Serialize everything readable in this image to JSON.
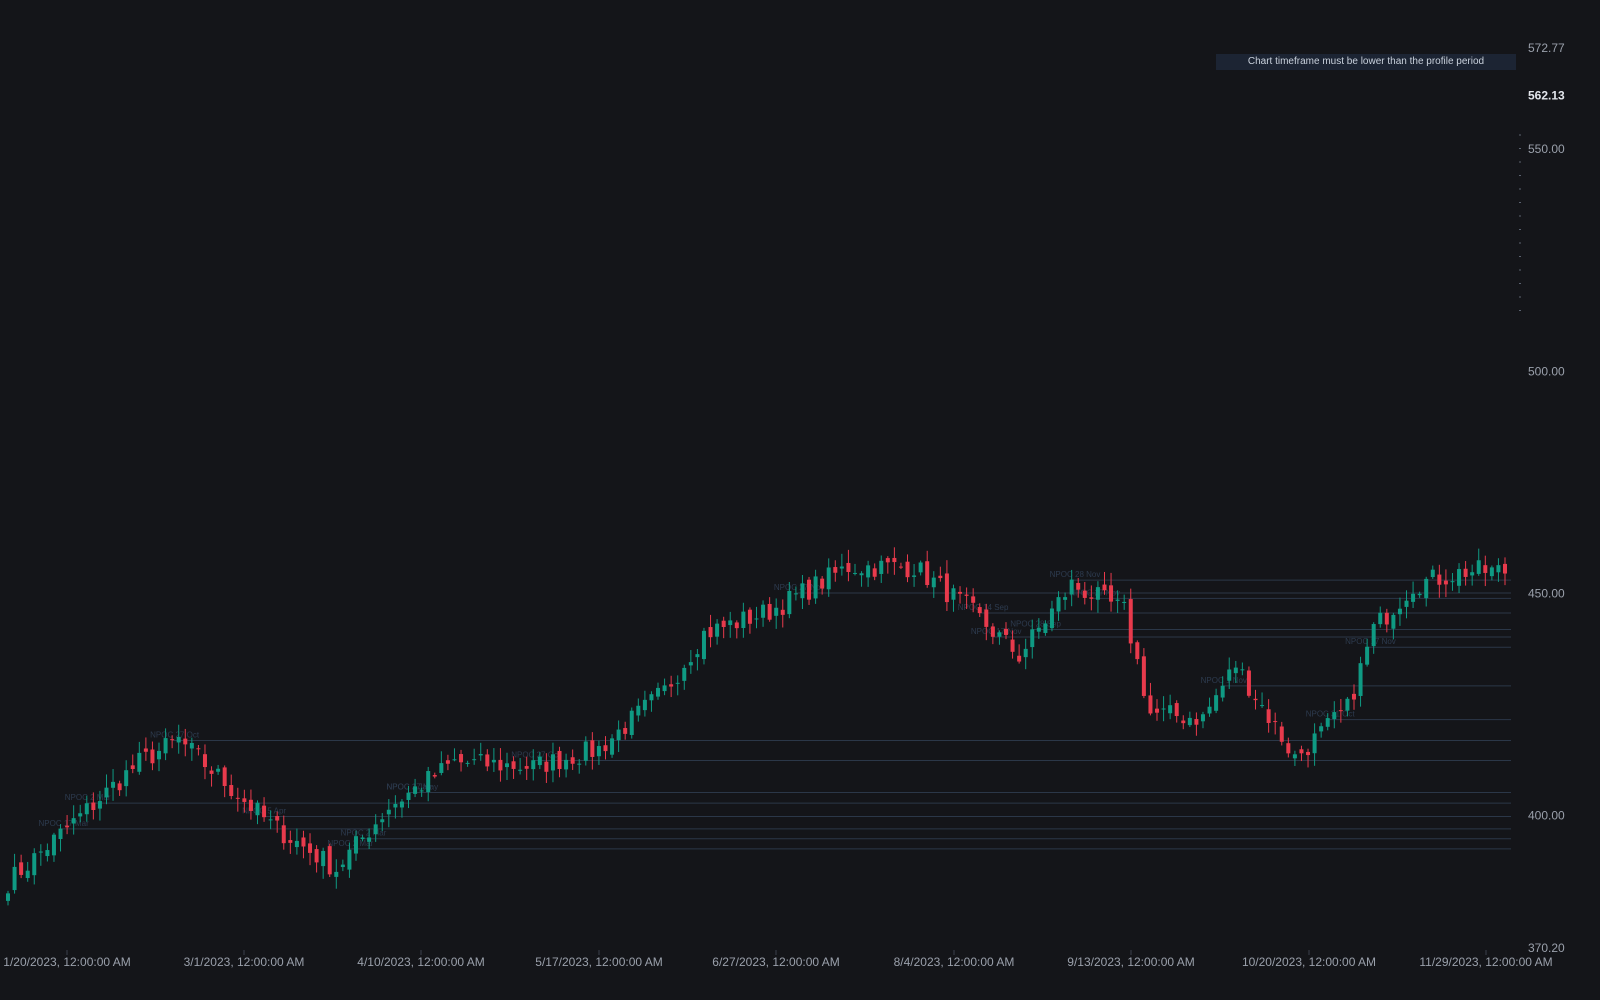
{
  "notice": "Chart timeframe must be lower than the profile period",
  "colors": {
    "background": "#141519",
    "up": "#0f9a83",
    "down": "#e83a4c",
    "npoc_line": "#2b3748",
    "grid_text": "#9aa0ab"
  },
  "chart_data": {
    "type": "candlestick",
    "ylim": [
      370.2,
      572.77
    ],
    "y_axis_labels": [
      "572.77",
      "562.13",
      "550.00",
      "500.00",
      "450.00",
      "400.00",
      "370.20"
    ],
    "current_price": "562.13",
    "x_axis_labels": [
      "1/20/2023, 12:00:00 AM",
      "3/1/2023, 12:00:00 AM",
      "4/10/2023, 12:00:00 AM",
      "5/17/2023, 12:00:00 AM",
      "6/27/2023, 12:00:00 AM",
      "8/4/2023, 12:00:00 AM",
      "9/13/2023, 12:00:00 AM",
      "10/20/2023, 12:00:00 AM",
      "11/29/2023, 12:00:00 AM"
    ],
    "trend": {
      "x_index": [
        0,
        20,
        26,
        40,
        50,
        58,
        68,
        80,
        90,
        100,
        106,
        116,
        128,
        138,
        146,
        154,
        162,
        170,
        174,
        182,
        187,
        196,
        204,
        208,
        214,
        222,
        228
      ],
      "close": [
        385,
        412,
        417,
        398,
        388,
        402,
        412,
        411,
        415,
        428,
        441,
        446,
        456,
        456,
        447,
        436,
        452,
        446,
        423,
        422,
        434,
        413,
        424,
        442,
        452,
        455,
        455
      ]
    },
    "npoc_levels": [
      {
        "label": "NPOC 3 Jan",
        "price": 405.2
      },
      {
        "label": "NPOC 2 Mar",
        "price": 402.8
      },
      {
        "label": "NPOC 5 Apr",
        "price": 399.8
      },
      {
        "label": "NPOC 17 Mar",
        "price": 397.0
      },
      {
        "label": "NPOC 2 Mar",
        "price": 394.8
      },
      {
        "label": "NPOC 2 Mar",
        "price": 392.5
      },
      {
        "label": "NPOC 17 May",
        "price": 405.2
      },
      {
        "label": "NPOC 14 Sep",
        "price": 445.6
      },
      {
        "label": "NPOC 28 Sep",
        "price": 441.9
      },
      {
        "label": "NPOC 17 Nov",
        "price": 440.2
      },
      {
        "label": "NPOC 17 Nov",
        "price": 437.9
      },
      {
        "label": "NPOC 1 Nov",
        "price": 429.2
      },
      {
        "label": "NPOC 31 Oct",
        "price": 421.6
      },
      {
        "label": "NPOC 27 Oct",
        "price": 416.9
      },
      {
        "label": "NPOC 27 Oct",
        "price": 412.4
      },
      {
        "label": "NPOC 28 Nov",
        "price": 453.0
      },
      {
        "label": "NPOC 27 Nov",
        "price": 450.1
      },
      {
        "label": "NPOC 27 Nov",
        "price": 448.9
      }
    ]
  }
}
